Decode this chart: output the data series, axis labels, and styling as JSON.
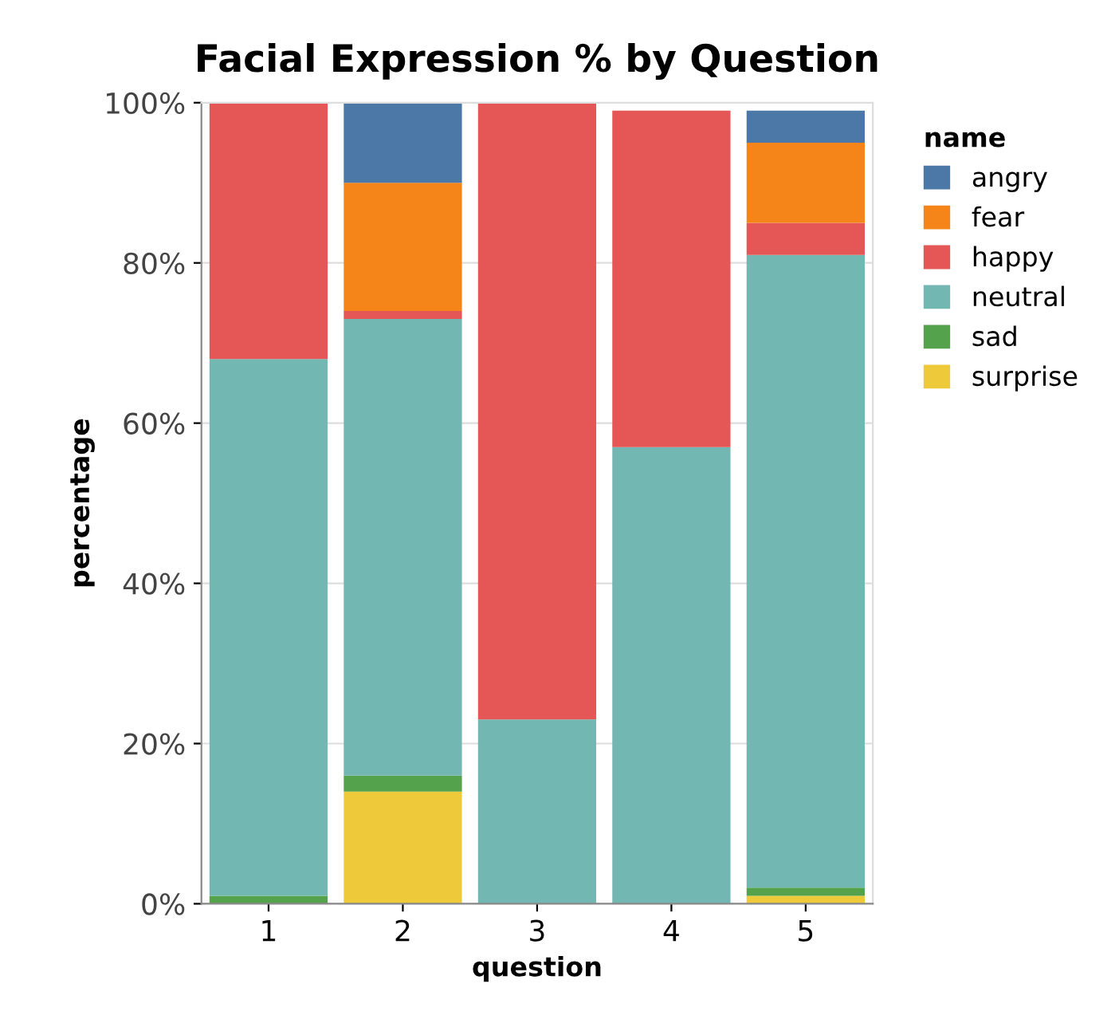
{
  "chart_data": {
    "type": "bar",
    "title": "Facial Expression % by Question",
    "xlabel": "question",
    "ylabel": "percentage",
    "legend_title": "name",
    "categories": [
      "1",
      "2",
      "3",
      "4",
      "5"
    ],
    "stacked": true,
    "series": [
      {
        "name": "surprise",
        "color": "#eeca3b",
        "values": [
          0,
          14,
          0,
          0,
          1
        ]
      },
      {
        "name": "sad",
        "color": "#54a24b",
        "values": [
          1,
          2,
          0,
          0,
          1
        ]
      },
      {
        "name": "neutral",
        "color": "#72b7b2",
        "values": [
          67,
          57,
          23,
          57,
          79
        ]
      },
      {
        "name": "happy",
        "color": "#e45756",
        "values": [
          32,
          1,
          77,
          42,
          4
        ]
      },
      {
        "name": "fear",
        "color": "#f58518",
        "values": [
          0,
          16,
          0,
          0,
          10
        ]
      },
      {
        "name": "angry",
        "color": "#4c78a8",
        "values": [
          0,
          10,
          0,
          0,
          4
        ]
      }
    ],
    "ylim": [
      0,
      100
    ],
    "yticks": [
      {
        "value": 0,
        "label": "0%"
      },
      {
        "value": 20,
        "label": "20%"
      },
      {
        "value": 40,
        "label": "40%"
      },
      {
        "value": 60,
        "label": "60%"
      },
      {
        "value": 80,
        "label": "80%"
      },
      {
        "value": 100,
        "label": "100%"
      }
    ],
    "grid": "y",
    "legend": "right"
  }
}
